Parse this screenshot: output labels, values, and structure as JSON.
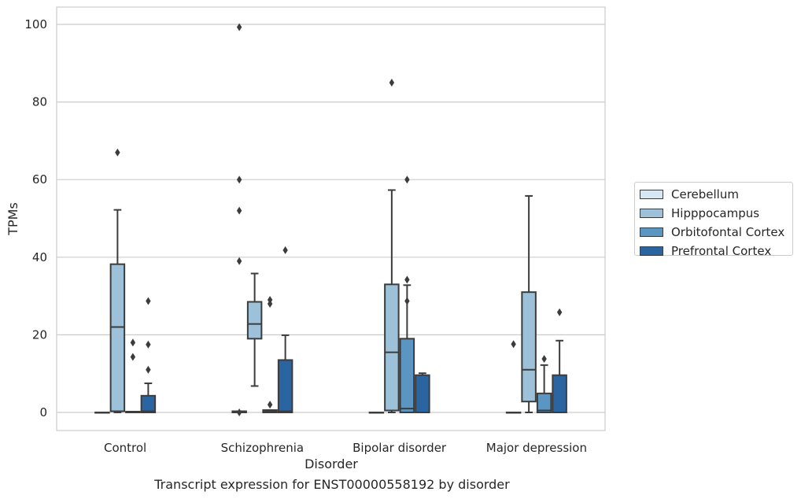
{
  "caption": "Transcript expression for ENST00000558192 by disorder",
  "chart_data": {
    "type": "box",
    "xlabel": "Disorder",
    "ylabel": "TPMs",
    "ylim": [
      -5,
      104
    ],
    "yticks": [
      0,
      20,
      40,
      60,
      80,
      100
    ],
    "grid": true,
    "legend_position": "right",
    "categories": [
      "Control",
      "Schizophrenia",
      "Bipolar disorder",
      "Major depression"
    ],
    "series": [
      {
        "name": "Cerebellum",
        "color": "#d6e6f3",
        "boxes": [
          {
            "q1": 0,
            "median": 0,
            "q3": 0,
            "whisker_low": 0,
            "whisker_high": 0,
            "outliers": []
          },
          {
            "q1": 0,
            "median": 0,
            "q3": 0.3,
            "whisker_low": 0,
            "whisker_high": 0.3,
            "outliers": [
              99.3,
              60,
              39,
              52,
              0
            ]
          },
          {
            "q1": 0,
            "median": 0,
            "q3": 0,
            "whisker_low": 0,
            "whisker_high": 0,
            "outliers": []
          },
          {
            "q1": 0,
            "median": 0,
            "q3": 0,
            "whisker_low": 0,
            "whisker_high": 0,
            "outliers": [
              17.6
            ]
          }
        ]
      },
      {
        "name": "Hipppocampus",
        "color": "#9dc1d9",
        "boxes": [
          {
            "q1": 0.3,
            "median": 22,
            "q3": 38.2,
            "whisker_low": 0,
            "whisker_high": 52.2,
            "outliers": [
              67
            ]
          },
          {
            "q1": 19,
            "median": 22.8,
            "q3": 28.5,
            "whisker_low": 6.8,
            "whisker_high": 35.8,
            "outliers": []
          },
          {
            "q1": 0.5,
            "median": 15.5,
            "q3": 33,
            "whisker_low": 0,
            "whisker_high": 57.3,
            "outliers": [
              85
            ]
          },
          {
            "q1": 2.8,
            "median": 11,
            "q3": 31,
            "whisker_low": 0,
            "whisker_high": 55.8,
            "outliers": []
          }
        ]
      },
      {
        "name": "Orbitofontal Cortex",
        "color": "#5b96c2",
        "boxes": [
          {
            "q1": 0,
            "median": 0,
            "q3": 0.2,
            "whisker_low": 0,
            "whisker_high": 0.2,
            "outliers": [
              18,
              14.3
            ]
          },
          {
            "q1": 0,
            "median": 0.2,
            "q3": 0.6,
            "whisker_low": 0,
            "whisker_high": 0.6,
            "outliers": [
              29,
              28,
              2
            ]
          },
          {
            "q1": 0,
            "median": 1,
            "q3": 19,
            "whisker_low": 0,
            "whisker_high": 32.8,
            "outliers": [
              60,
              34.2,
              28.7
            ]
          },
          {
            "q1": 0,
            "median": 0.5,
            "q3": 4.9,
            "whisker_low": 0,
            "whisker_high": 12.2,
            "outliers": [
              13.8
            ]
          }
        ]
      },
      {
        "name": "Prefrontal Cortex",
        "color": "#2a65a2",
        "boxes": [
          {
            "q1": 0,
            "median": 0.3,
            "q3": 4.3,
            "whisker_low": 0,
            "whisker_high": 7.5,
            "outliers": [
              28.7,
              17.5,
              11
            ]
          },
          {
            "q1": 0,
            "median": 0.3,
            "q3": 13.5,
            "whisker_low": 0,
            "whisker_high": 19.9,
            "outliers": [
              41.8
            ]
          },
          {
            "q1": 0,
            "median": 0,
            "q3": 9.6,
            "whisker_low": 0,
            "whisker_high": 10.1,
            "outliers": []
          },
          {
            "q1": 0,
            "median": 0,
            "q3": 9.6,
            "whisker_low": 0,
            "whisker_high": 18.5,
            "outliers": [
              25.8
            ]
          }
        ]
      }
    ]
  }
}
